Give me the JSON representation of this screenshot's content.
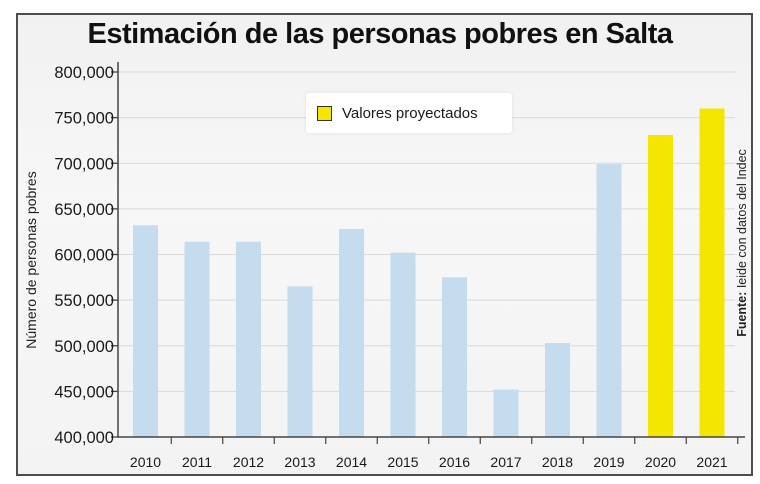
{
  "chart_data": {
    "type": "bar",
    "title": "Estimación de las personas pobres en Salta",
    "xlabel": "",
    "ylabel": "Número de personas pobres",
    "source": {
      "bold": "Fuente:",
      "text": " Ieide con datos del Indec"
    },
    "ylim": [
      400000,
      800000
    ],
    "yticks": [
      400000,
      450000,
      500000,
      550000,
      600000,
      650000,
      700000,
      750000,
      800000
    ],
    "ytick_labels": [
      "400,000",
      "450,000",
      "500,000",
      "550,000",
      "600,000",
      "650,000",
      "700,000",
      "750,000",
      "800,000"
    ],
    "grid": true,
    "legend": {
      "placement": "top-center",
      "entries": [
        {
          "label": "Valores proyectados",
          "color": "#f4e600"
        }
      ]
    },
    "categories": [
      "2010",
      "2011",
      "2012",
      "2013",
      "2014",
      "2015",
      "2016",
      "2017",
      "2018",
      "2019",
      "2020",
      "2021"
    ],
    "values": [
      632000,
      614000,
      614000,
      565000,
      628000,
      602000,
      575000,
      452000,
      503000,
      699000,
      731000,
      760000
    ],
    "projected": [
      false,
      false,
      false,
      false,
      false,
      false,
      false,
      false,
      false,
      false,
      true,
      true
    ],
    "colors": {
      "actual": "#c5dbee",
      "projected": "#f4e600",
      "grid": "#d9d9d9",
      "axis": "#444444"
    }
  }
}
